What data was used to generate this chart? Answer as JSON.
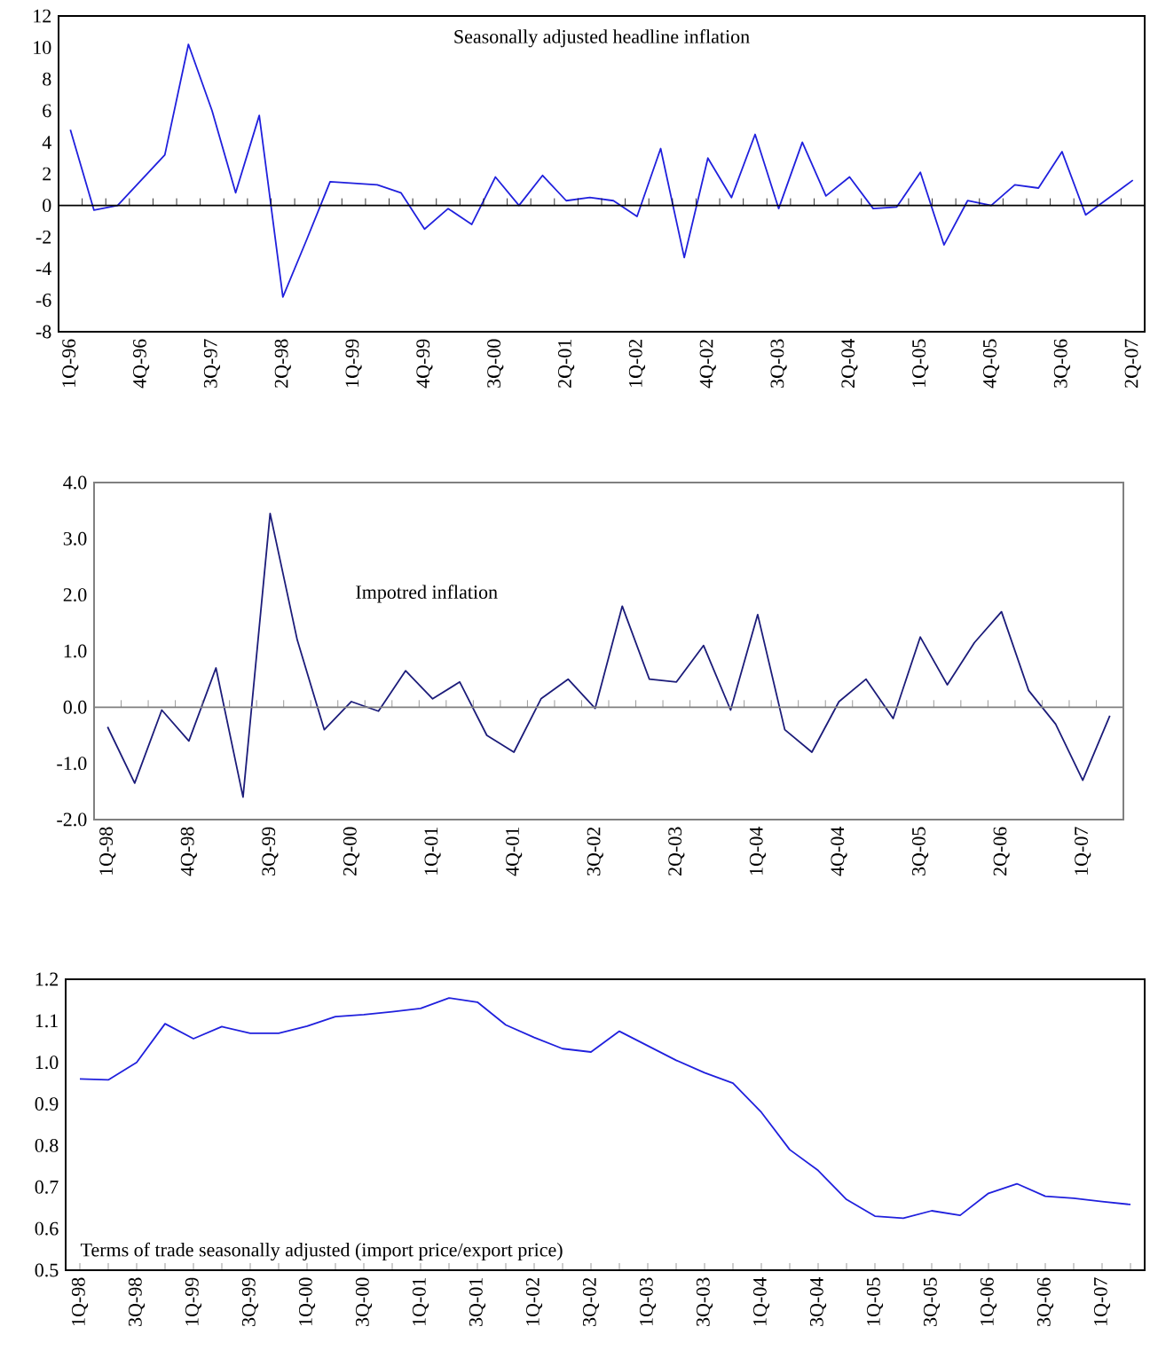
{
  "chart_data": [
    {
      "type": "line",
      "title": "Seasonally adjusted headline inflation",
      "color": "#2020dd",
      "categories": [
        "1Q-96",
        null,
        null,
        "4Q-96",
        null,
        null,
        "3Q-97",
        null,
        null,
        "2Q-98",
        null,
        null,
        "1Q-99",
        null,
        null,
        "4Q-99",
        null,
        null,
        "3Q-00",
        null,
        null,
        "2Q-01",
        null,
        null,
        "1Q-02",
        null,
        null,
        "4Q-02",
        null,
        null,
        "3Q-03",
        null,
        null,
        "2Q-04",
        null,
        null,
        "1Q-05",
        null,
        null,
        "4Q-05",
        null,
        null,
        "3Q-06",
        null,
        null,
        "2Q-07"
      ],
      "values": [
        4.8,
        -0.3,
        0.0,
        1.6,
        3.2,
        10.2,
        6.0,
        0.8,
        5.7,
        -5.8,
        -2.2,
        1.5,
        1.4,
        1.3,
        0.8,
        -1.5,
        -0.2,
        -1.2,
        1.8,
        0.0,
        1.9,
        0.3,
        0.5,
        0.3,
        -0.7,
        3.6,
        -3.3,
        3.0,
        0.5,
        4.5,
        -0.2,
        4.0,
        0.6,
        1.8,
        -0.2,
        -0.1,
        2.1,
        -2.5,
        0.3,
        0.0,
        1.3,
        1.1,
        3.4,
        -0.6,
        0.5,
        1.6
      ],
      "ylim": [
        -8,
        12
      ],
      "yticks": [
        -8,
        -6,
        -4,
        -2,
        0,
        2,
        4,
        6,
        8,
        10,
        12
      ]
    },
    {
      "type": "line",
      "title": "Impotred inflation",
      "color": "#1c1c7a",
      "categories": [
        "1Q-98",
        null,
        null,
        "4Q-98",
        null,
        null,
        "3Q-99",
        null,
        null,
        "2Q-00",
        null,
        null,
        "1Q-01",
        null,
        null,
        "4Q-01",
        null,
        null,
        "3Q-02",
        null,
        null,
        "2Q-03",
        null,
        null,
        "1Q-04",
        null,
        null,
        "4Q-04",
        null,
        null,
        "3Q-05",
        null,
        null,
        "2Q-06",
        null,
        null,
        "1Q-07",
        null
      ],
      "values": [
        -0.35,
        -1.35,
        -0.05,
        -0.6,
        0.7,
        -1.6,
        3.45,
        1.2,
        -0.4,
        0.1,
        -0.07,
        0.65,
        0.15,
        0.45,
        -0.5,
        -0.8,
        0.15,
        0.5,
        -0.02,
        1.8,
        0.5,
        0.45,
        1.1,
        -0.05,
        1.65,
        -0.4,
        -0.8,
        0.1,
        0.5,
        -0.2,
        1.25,
        0.4,
        1.15,
        1.7,
        0.3,
        -0.3,
        -1.3,
        -0.15
      ],
      "ylim": [
        -2,
        4
      ],
      "yticks": [
        {
          "value": -2,
          "label": "-2.0"
        },
        {
          "value": -1,
          "label": "-1.0"
        },
        {
          "value": 0,
          "label": "0.0"
        },
        {
          "value": 1,
          "label": "1.0"
        },
        {
          "value": 2,
          "label": "2.0"
        },
        {
          "value": 3,
          "label": "3.0"
        },
        {
          "value": 4,
          "label": "4.0"
        }
      ]
    },
    {
      "type": "line",
      "title": "Terms of trade seasonally adjusted (import price/export price)",
      "color": "#2020dd",
      "categories": [
        "1Q-98",
        null,
        "3Q-98",
        null,
        "1Q-99",
        null,
        "3Q-99",
        null,
        "1Q-00",
        null,
        "3Q-00",
        null,
        "1Q-01",
        null,
        "3Q-01",
        null,
        "1Q-02",
        null,
        "3Q-02",
        null,
        "1Q-03",
        null,
        "3Q-03",
        null,
        "1Q-04",
        null,
        "3Q-04",
        null,
        "1Q-05",
        null,
        "3Q-05",
        null,
        "1Q-06",
        null,
        "3Q-06",
        null,
        "1Q-07",
        null
      ],
      "values": [
        0.96,
        0.958,
        1.0,
        1.093,
        1.057,
        1.086,
        1.07,
        1.07,
        1.087,
        1.11,
        1.115,
        1.122,
        1.13,
        1.155,
        1.145,
        1.09,
        1.06,
        1.033,
        1.025,
        1.075,
        1.04,
        1.005,
        0.975,
        0.95,
        0.88,
        0.79,
        0.74,
        0.67,
        0.63,
        0.625,
        0.643,
        0.632,
        0.685,
        0.708,
        0.678,
        0.673,
        0.665,
        0.658
      ],
      "ylim": [
        0.5,
        1.2
      ],
      "yticks": [
        0.5,
        0.6,
        0.7,
        0.8,
        0.9,
        {
          "value": 1.0,
          "label": "1.0"
        },
        1.1,
        1.2
      ]
    }
  ]
}
